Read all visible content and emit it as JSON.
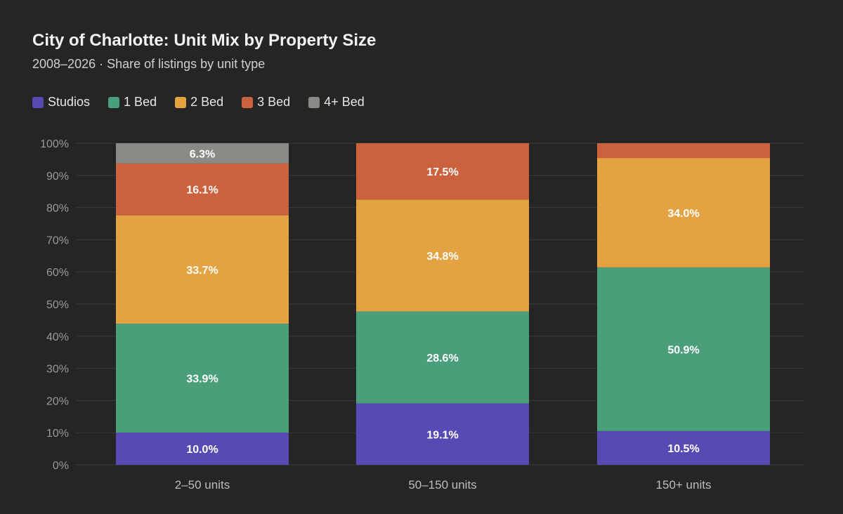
{
  "header": {
    "title": "City of Charlotte: Unit Mix by Property Size",
    "subtitle": "2008–2026 · Share of listings by unit type"
  },
  "colors": {
    "background": "#252525",
    "grid": "#3a3a3a",
    "tick": "#9a9a9a",
    "label": "#ffffff"
  },
  "legend": [
    {
      "name": "Studios",
      "color": "#574ab5"
    },
    {
      "name": "1 Bed",
      "color": "#4a9e7a"
    },
    {
      "name": "2 Bed",
      "color": "#e3a342"
    },
    {
      "name": "3 Bed",
      "color": "#cc623d"
    },
    {
      "name": "4+ Bed",
      "color": "#8a8985"
    }
  ],
  "chart_data": {
    "type": "bar",
    "stacked": true,
    "categories": [
      "2–50 units",
      "50–150 units",
      "150+ units"
    ],
    "series": [
      {
        "name": "Studios",
        "color": "#574ab5",
        "values": [
          10.0,
          19.1,
          10.5
        ],
        "labels": [
          "10.0%",
          "19.1%",
          "10.5%"
        ]
      },
      {
        "name": "1 Bed",
        "color": "#4a9e7a",
        "values": [
          33.9,
          28.6,
          50.9
        ],
        "labels": [
          "33.9%",
          "28.6%",
          "50.9%"
        ]
      },
      {
        "name": "2 Bed",
        "color": "#e3a342",
        "values": [
          33.7,
          34.8,
          34.0
        ],
        "labels": [
          "33.7%",
          "34.8%",
          "34.0%"
        ]
      },
      {
        "name": "3 Bed",
        "color": "#cc623d",
        "values": [
          16.1,
          17.5,
          4.6
        ],
        "labels": [
          "16.1%",
          "17.5%",
          ""
        ]
      },
      {
        "name": "4+ Bed",
        "color": "#8a8985",
        "values": [
          6.3,
          0,
          0
        ],
        "labels": [
          "6.3%",
          "",
          ""
        ]
      }
    ],
    "ylim": [
      0,
      100
    ],
    "yticks": [
      0,
      10,
      20,
      30,
      40,
      50,
      60,
      70,
      80,
      90,
      100
    ],
    "ytick_labels": [
      "0%",
      "10%",
      "20%",
      "30%",
      "40%",
      "50%",
      "60%",
      "70%",
      "80%",
      "90%",
      "100%"
    ],
    "grid": true,
    "legend_position": "top-left"
  }
}
